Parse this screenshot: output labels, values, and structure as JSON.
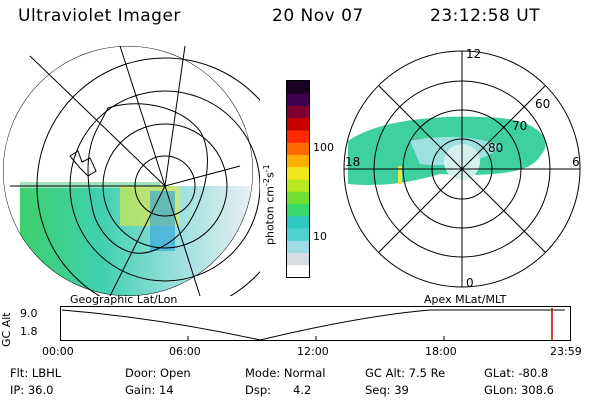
{
  "header": {
    "instrument": "Ultraviolet Imager",
    "date": "20 Nov 07",
    "time": "23:12:58 UT"
  },
  "colorbar": {
    "unit_label": "photon cm",
    "unit_sup1": "-2",
    "unit_mid": "s",
    "unit_sup2": "-1",
    "ticks": [
      "100",
      "10"
    ],
    "colors": [
      "#ffffff",
      "#d6dce4",
      "#9fd9e0",
      "#4fd0d0",
      "#2ec8c0",
      "#38d86a",
      "#6fe030",
      "#b8e820",
      "#f0e81a",
      "#ffb000",
      "#ff6a00",
      "#ff2a00",
      "#c80000",
      "#800030",
      "#400050",
      "#1a0020"
    ]
  },
  "geo_panel": {
    "label": "Geographic Lat/Lon"
  },
  "polar_panel": {
    "label": "Apex  MLat/MLT",
    "mlt_labels": [
      "12",
      "18",
      "6",
      "0"
    ],
    "lat_labels": [
      "60",
      "70",
      "80"
    ]
  },
  "timeline": {
    "ylabel": "GC Alt",
    "ytick_top": "9.0",
    "ytick_bottom": "1.8",
    "xticks": [
      "00:00",
      "06:00",
      "12:00",
      "18:00",
      "23:59"
    ],
    "current_marker_color": "#cc0000"
  },
  "footer": {
    "flt": "Flt: LBHL",
    "door": "Door: Open",
    "mode": "Mode: Normal",
    "gc_alt": "GC Alt: 7.5 Re",
    "glat": "GLat: -80.8",
    "ip": "IP: 36.0",
    "gain": "Gain: 14",
    "dsp_label": "Dsp:",
    "dsp_value": "4.2",
    "seq": "Seq: 39",
    "glon": "GLon: 308.6"
  }
}
